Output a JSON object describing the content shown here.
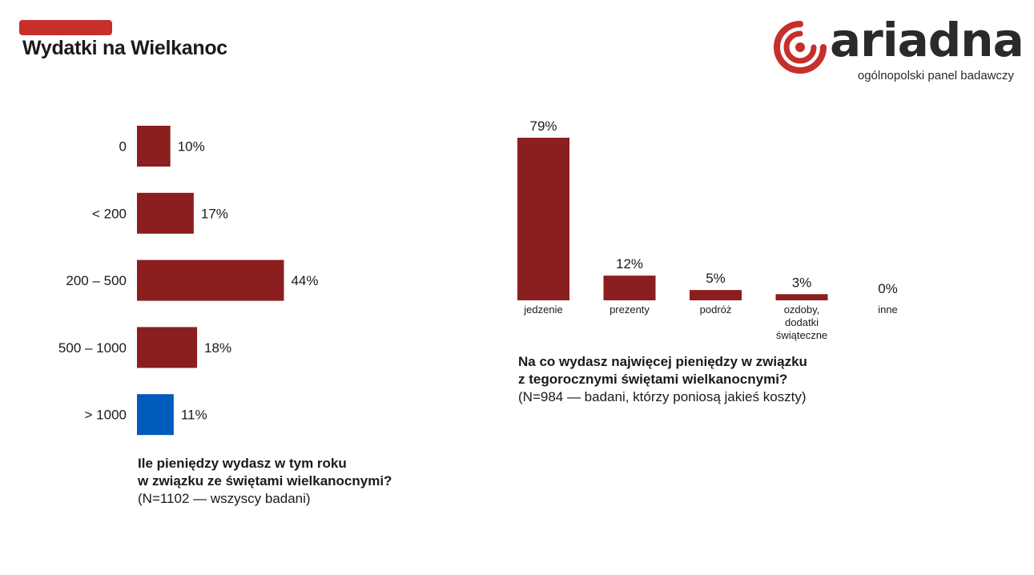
{
  "header": {
    "title": "Wydatki na Wielkanoc",
    "accent_color": "#c62f2a"
  },
  "logo": {
    "name": "ariadna",
    "tagline": "ogólnopolski panel badawczy",
    "icon": "ariadna-spiral-logo-icon",
    "color": "#c62f2a"
  },
  "chart_data": [
    {
      "type": "bar",
      "orientation": "horizontal",
      "categories": [
        "0",
        "< 200",
        "200 – 500",
        "500 – 1000",
        "> 1000"
      ],
      "values": [
        10,
        17,
        44,
        18,
        11
      ],
      "value_labels": [
        "10%",
        "17%",
        "44%",
        "18%",
        "11%"
      ],
      "unit": "%",
      "colors": [
        "#8b1e1e",
        "#8b1e1e",
        "#8b1e1e",
        "#8b1e1e",
        "#005bbb"
      ],
      "caption_question_line1": "Ile pieniędzy wydasz w tym roku",
      "caption_question_line2": "w związku ze świętami wielkanocnymi?",
      "caption_note": "(N=1102 — wszyscy badani)"
    },
    {
      "type": "bar",
      "orientation": "vertical",
      "categories": [
        "jedzenie",
        "prezenty",
        "podróż",
        "ozdoby, dodatki świąteczne",
        "inne"
      ],
      "category_lines": [
        [
          "jedzenie"
        ],
        [
          "prezenty"
        ],
        [
          "podróż"
        ],
        [
          "ozdoby,",
          "dodatki",
          "świąteczne"
        ],
        [
          "inne"
        ]
      ],
      "values": [
        79,
        12,
        5,
        3,
        0
      ],
      "value_labels": [
        "79%",
        "12%",
        "5%",
        "3%",
        "0%"
      ],
      "unit": "%",
      "colors": [
        "#8b1e1e",
        "#8b1e1e",
        "#8b1e1e",
        "#8b1e1e",
        "#8b1e1e"
      ],
      "caption_question_line1": "Na co wydasz najwięcej pieniędzy w związku",
      "caption_question_line2": "z tegorocznymi świętami wielkanocnymi?",
      "caption_note": "(N=984 — badani, którzy poniosą jakieś koszty)"
    }
  ]
}
